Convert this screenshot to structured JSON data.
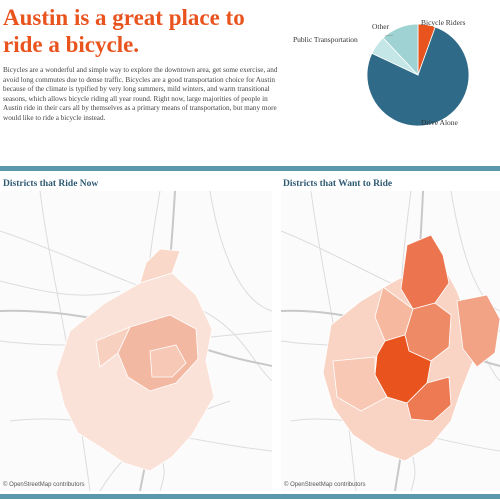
{
  "headline": "Austin is a great place to ride a bicycle.",
  "intro": "Bicycles are a wonderful and simple way to explore the downtown area, get some exercise, and avoid long commutes due to dense traffic. Bicycles are a good transportation choice for Austin because of the climate is typified by very long summers, mild winters, and warm transitional seasons, which allows bicycle riding all year round. Right now, large majorities of people in Austin ride in their cars all by themselves as a primary means of transportation, but many more would like to ride a bicycle instead.",
  "pie": {
    "slices": [
      {
        "label": "Bicycle Riders",
        "share": 0.055,
        "color": "#e9541e"
      },
      {
        "label": "Drive Alone",
        "share": 0.765,
        "color": "#2f6b88"
      },
      {
        "label": "Public Transportation",
        "share": 0.06,
        "color": "#c4e6e6"
      },
      {
        "label": "Other",
        "share": 0.12,
        "color": "#9fd3d3"
      }
    ]
  },
  "maps": {
    "left": {
      "title": "Districts that Ride Now",
      "attribution": "© OpenStreetMap contributors"
    },
    "right": {
      "title": "Districts that Want to Ride",
      "attribution": "© OpenStreetMap contributors"
    }
  },
  "colors": {
    "accent": "#e9541e",
    "divider": "#5b98ab",
    "section_title": "#2e5a74"
  }
}
